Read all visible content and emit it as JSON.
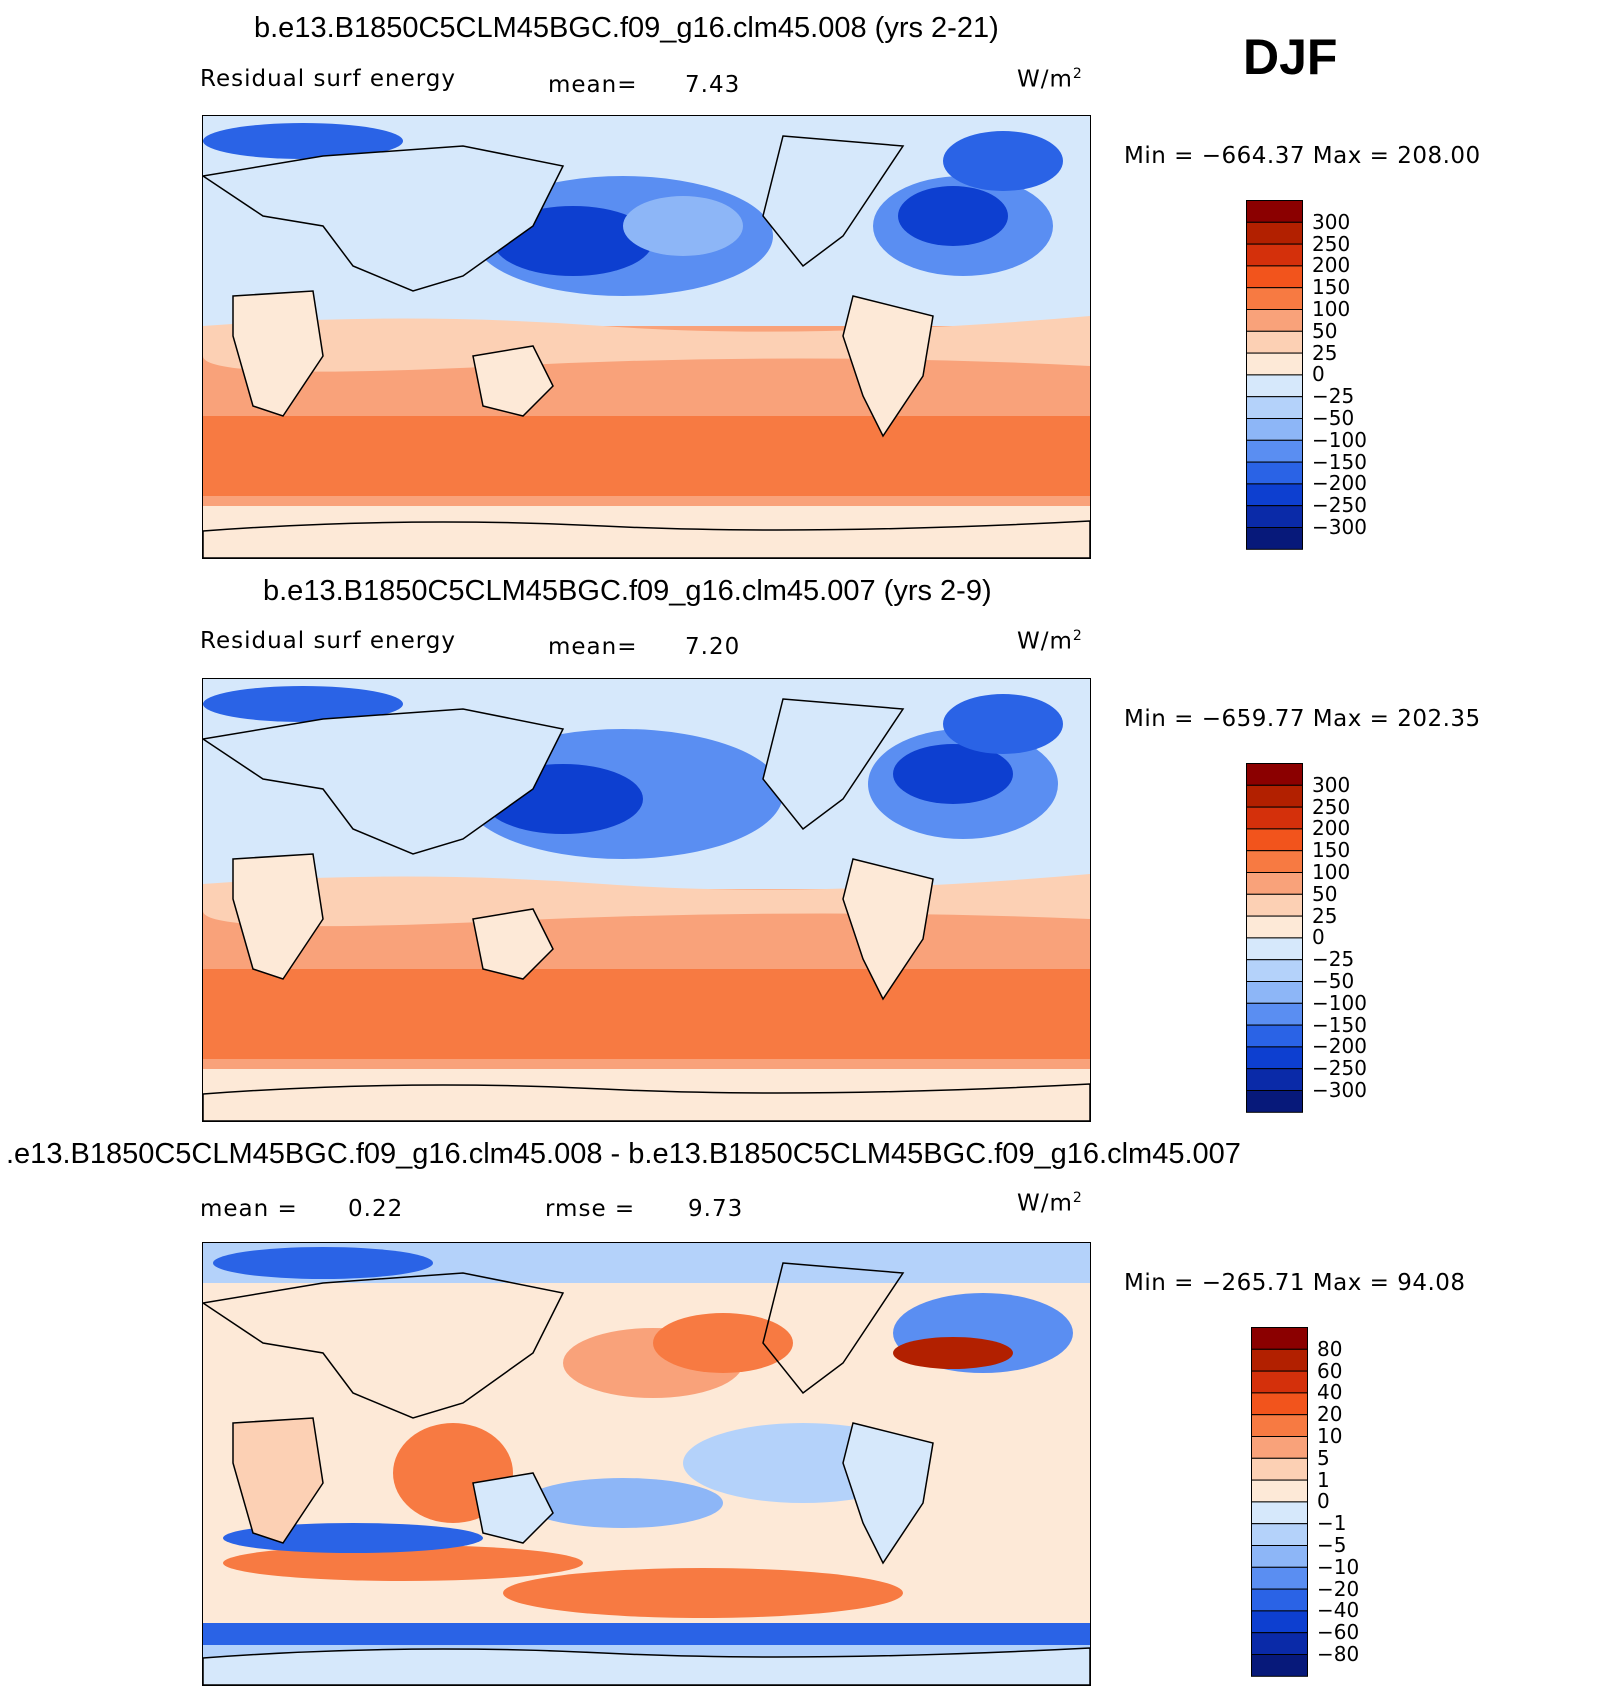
{
  "season": "DJF",
  "panels": [
    {
      "title": "b.e13.B1850C5CLM45BGC.f09_g16.clm45.008 (yrs 2-21)",
      "variable": "Residual surf energy",
      "stat1_label": "mean=",
      "stat1_value": "7.43",
      "stat2_label": "",
      "stat2_value": "",
      "units": "W/m",
      "units_sup": "2",
      "minmax": "Min = −664.37 Max = 208.00",
      "colorbar": [
        "300",
        "250",
        "200",
        "150",
        "100",
        "50",
        "25",
        "0",
        "−25",
        "−50",
        "−100",
        "−150",
        "−200",
        "−250",
        "−300"
      ]
    },
    {
      "title": "b.e13.B1850C5CLM45BGC.f09_g16.clm45.007 (yrs 2-9)",
      "variable": "Residual surf energy",
      "stat1_label": "mean=",
      "stat1_value": "7.20",
      "stat2_label": "",
      "stat2_value": "",
      "units": "W/m",
      "units_sup": "2",
      "minmax": "Min = −659.77 Max = 202.35",
      "colorbar": [
        "300",
        "250",
        "200",
        "150",
        "100",
        "50",
        "25",
        "0",
        "−25",
        "−50",
        "−100",
        "−150",
        "−200",
        "−250",
        "−300"
      ]
    },
    {
      "title": ".e13.B1850C5CLM45BGC.f09_g16.clm45.008 - b.e13.B1850C5CLM45BGC.f09_g16.clm45.007",
      "variable": "",
      "stat1_label": "mean =",
      "stat1_value": "0.22",
      "stat2_label": "rmse =",
      "stat2_value": "9.73",
      "units": "W/m",
      "units_sup": "2",
      "minmax": "Min = −265.71 Max =  94.08",
      "colorbar": [
        "80",
        "60",
        "40",
        "20",
        "10",
        "5",
        "1",
        "0",
        "−1",
        "−5",
        "−10",
        "−20",
        "−40",
        "−60",
        "−80"
      ]
    }
  ],
  "colors": {
    "levels": [
      "#8b0000",
      "#b22000",
      "#d4300b",
      "#f2541c",
      "#f77a42",
      "#f9a27a",
      "#fcd0b4",
      "#fde9d7",
      "#d6e8fb",
      "#b4d2fa",
      "#8db6f7",
      "#5a8ef2",
      "#2a63e6",
      "#0d3fd0",
      "#0a2aa8",
      "#07197a"
    ]
  },
  "chart_data": [
    {
      "type": "heatmap",
      "title": "b.e13.B1850C5CLM45BGC.f09_g16.clm45.008 (yrs 2-21)",
      "field": "Residual surf energy",
      "units": "W/m2",
      "season": "DJF",
      "mean": 7.43,
      "min": -664.37,
      "max": 208.0,
      "contour_levels": [
        -300,
        -250,
        -200,
        -150,
        -100,
        -50,
        -25,
        0,
        25,
        50,
        100,
        150,
        200,
        250,
        300
      ]
    },
    {
      "type": "heatmap",
      "title": "b.e13.B1850C5CLM45BGC.f09_g16.clm45.007 (yrs 2-9)",
      "field": "Residual surf energy",
      "units": "W/m2",
      "season": "DJF",
      "mean": 7.2,
      "min": -659.77,
      "max": 202.35,
      "contour_levels": [
        -300,
        -250,
        -200,
        -150,
        -100,
        -50,
        -25,
        0,
        25,
        50,
        100,
        150,
        200,
        250,
        300
      ]
    },
    {
      "type": "heatmap",
      "title": ".e13.B1850C5CLM45BGC.f09_g16.clm45.008 - b.e13.B1850C5CLM45BGC.f09_g16.clm45.007",
      "units": "W/m2",
      "season": "DJF",
      "mean": 0.22,
      "rmse": 9.73,
      "min": -265.71,
      "max": 94.08,
      "contour_levels": [
        -80,
        -60,
        -40,
        -20,
        -10,
        -5,
        -1,
        0,
        1,
        5,
        10,
        20,
        40,
        60,
        80
      ]
    }
  ]
}
